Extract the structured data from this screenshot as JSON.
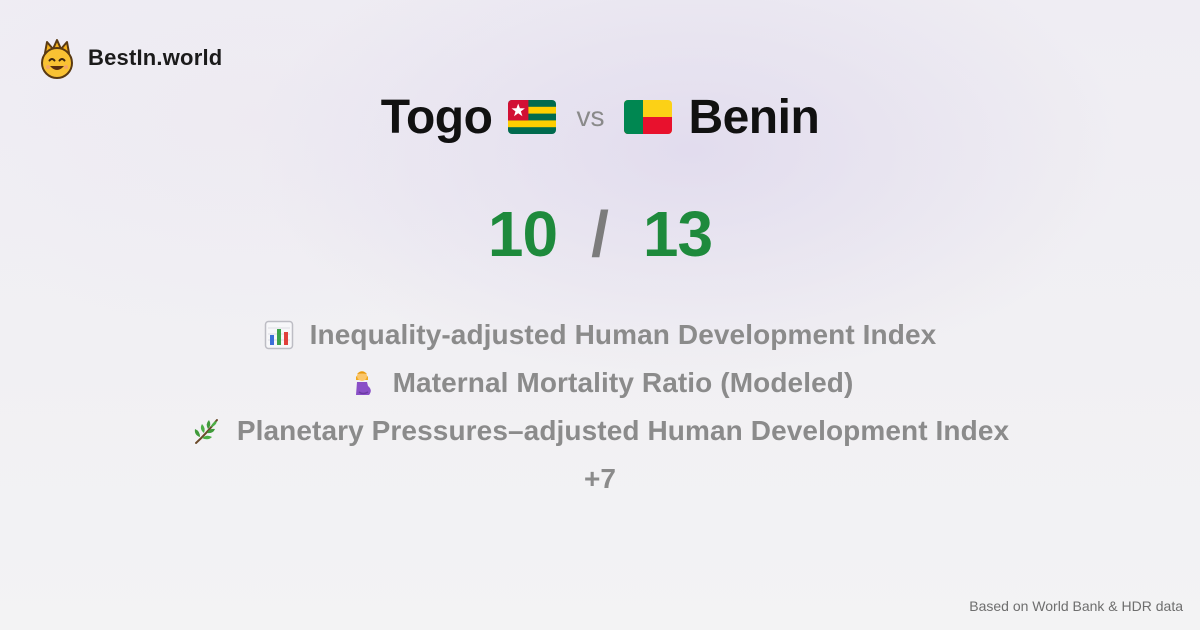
{
  "brand": {
    "name": "BestIn.world",
    "logo_icon": "smiling-crown-face-icon"
  },
  "comparison": {
    "left_country": "Togo",
    "left_flag_icon": "togo-flag-icon",
    "vs_label": "vs",
    "right_country": "Benin",
    "right_flag_icon": "benin-flag-icon"
  },
  "score": {
    "left": "10",
    "separator": "/",
    "right": "13",
    "color": "#1e8a3c"
  },
  "metrics": [
    {
      "icon": "bar-chart-icon",
      "label": "Inequality-adjusted Human Development Index"
    },
    {
      "icon": "pregnant-woman-icon",
      "label": "Maternal Mortality Ratio (Modeled)"
    },
    {
      "icon": "herb-icon",
      "label": "Planetary Pressures–adjusted Human Development Index"
    }
  ],
  "more_label": "+7",
  "footer": {
    "source": "Based on World Bank & HDR data"
  },
  "colors": {
    "title": "#111111",
    "muted": "#8b8b8b",
    "accent_green": "#1e8a3c"
  }
}
